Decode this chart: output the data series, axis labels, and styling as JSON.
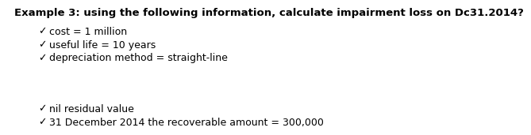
{
  "title": "Example 3: using the following information, calculate impairment loss on Dc31.2014?",
  "title_fontsize": 9.5,
  "bg_color": "#ffffff",
  "divider_color": "#d0d0d0",
  "bullet": "✓",
  "items_top": [
    "cost = 1 million",
    "useful life = 10 years",
    "depreciation method = straight-line"
  ],
  "items_bottom": [
    "nil residual value",
    "31 December 2014 the recoverable amount = 300,000"
  ],
  "item_fontsize": 9.0,
  "item_color": "#000000",
  "title_color": "#000000"
}
